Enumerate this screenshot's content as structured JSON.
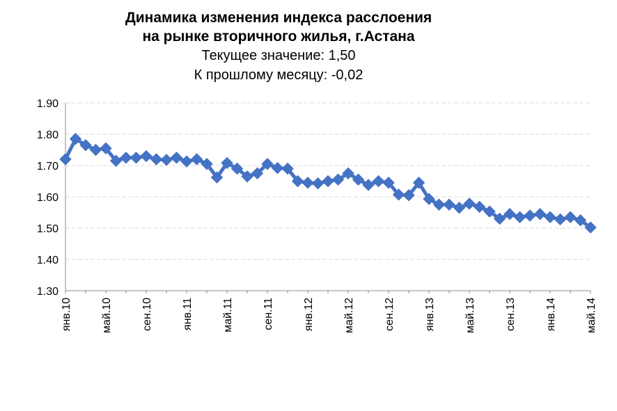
{
  "chart_data": {
    "type": "line",
    "title": [
      "Динамика изменения индекса расслоения",
      "на рынке вторичного  жилья, г.Астана"
    ],
    "subtitle": [
      "Текущее значение: 1,50",
      "К прошлому месяцу: -0,02"
    ],
    "xlabel": "",
    "ylabel": "",
    "ylim": [
      1.3,
      1.9
    ],
    "yticks": [
      "1.30",
      "1.40",
      "1.50",
      "1.60",
      "1.70",
      "1.80",
      "1.90"
    ],
    "x_tick_labels": [
      {
        "index": 0,
        "label": "янв.10"
      },
      {
        "index": 4,
        "label": "май.10"
      },
      {
        "index": 8,
        "label": "сен.10"
      },
      {
        "index": 12,
        "label": "янв.11"
      },
      {
        "index": 16,
        "label": "май.11"
      },
      {
        "index": 20,
        "label": "сен.11"
      },
      {
        "index": 24,
        "label": "янв.12"
      },
      {
        "index": 28,
        "label": "май.12"
      },
      {
        "index": 32,
        "label": "сен.12"
      },
      {
        "index": 36,
        "label": "янв.13"
      },
      {
        "index": 40,
        "label": "май.13"
      },
      {
        "index": 44,
        "label": "сен.13"
      },
      {
        "index": 48,
        "label": "янв.14"
      },
      {
        "index": 52,
        "label": "май.14"
      }
    ],
    "series": [
      {
        "color": "#4472C4",
        "marker": "diamond",
        "values": [
          1.72,
          1.785,
          1.765,
          1.75,
          1.755,
          1.715,
          1.725,
          1.725,
          1.73,
          1.72,
          1.718,
          1.725,
          1.713,
          1.72,
          1.705,
          1.662,
          1.708,
          1.69,
          1.665,
          1.675,
          1.705,
          1.692,
          1.69,
          1.65,
          1.645,
          1.643,
          1.65,
          1.655,
          1.675,
          1.655,
          1.638,
          1.65,
          1.645,
          1.607,
          1.605,
          1.645,
          1.593,
          1.575,
          1.575,
          1.565,
          1.578,
          1.568,
          1.553,
          1.53,
          1.545,
          1.535,
          1.54,
          1.545,
          1.535,
          1.528,
          1.535,
          1.525,
          1.502
        ]
      }
    ],
    "grid": true,
    "legend": "none"
  }
}
